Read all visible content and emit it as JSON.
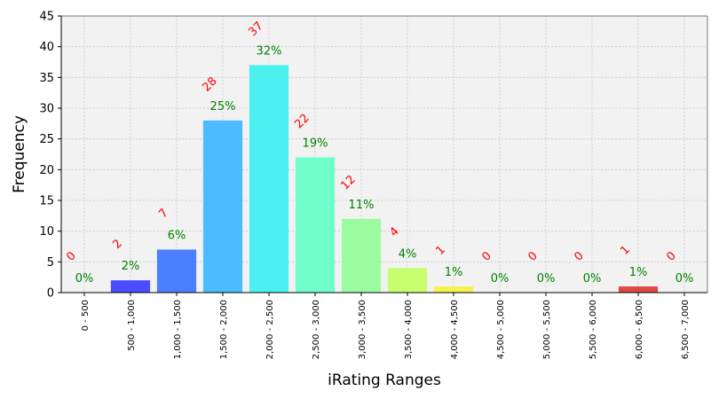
{
  "chart_data": {
    "type": "bar",
    "xlabel": "iRating Ranges",
    "ylabel": "Frequency",
    "ylim": [
      0,
      45
    ],
    "yticks": [
      0,
      5,
      10,
      15,
      20,
      25,
      30,
      35,
      40,
      45
    ],
    "grid": true,
    "categories": [
      "0 - 500",
      "500 - 1,000",
      "1,000 - 1,500",
      "1,500 - 2,000",
      "2,000 - 2,500",
      "2,500 - 3,000",
      "3,000 - 3,500",
      "3,500 - 4,000",
      "4,000 - 4,500",
      "4,500 - 5,000",
      "5,000 - 5,500",
      "5,500 - 6,000",
      "6,000 - 6,500",
      "6,500 - 7,000"
    ],
    "values": [
      0,
      2,
      7,
      28,
      37,
      22,
      12,
      4,
      1,
      0,
      0,
      0,
      1,
      0
    ],
    "count_labels": [
      "0",
      "2",
      "7",
      "28",
      "37",
      "22",
      "12",
      "4",
      "1",
      "0",
      "0",
      "0",
      "1",
      "0"
    ],
    "percent_labels": [
      "0%",
      "2%",
      "6%",
      "25%",
      "32%",
      "19%",
      "11%",
      "4%",
      "1%",
      "0%",
      "0%",
      "0%",
      "1%",
      "0%"
    ],
    "colors": [
      "#2a00ff",
      "#4b4bff",
      "#4a80ff",
      "#4bbcff",
      "#4cf0f0",
      "#70ffcc",
      "#9cfca0",
      "#c8ff6e",
      "#f4f44c",
      "#ffcc40",
      "#ff9a40",
      "#ff6a3c",
      "#e04848",
      "#c02020"
    ]
  }
}
